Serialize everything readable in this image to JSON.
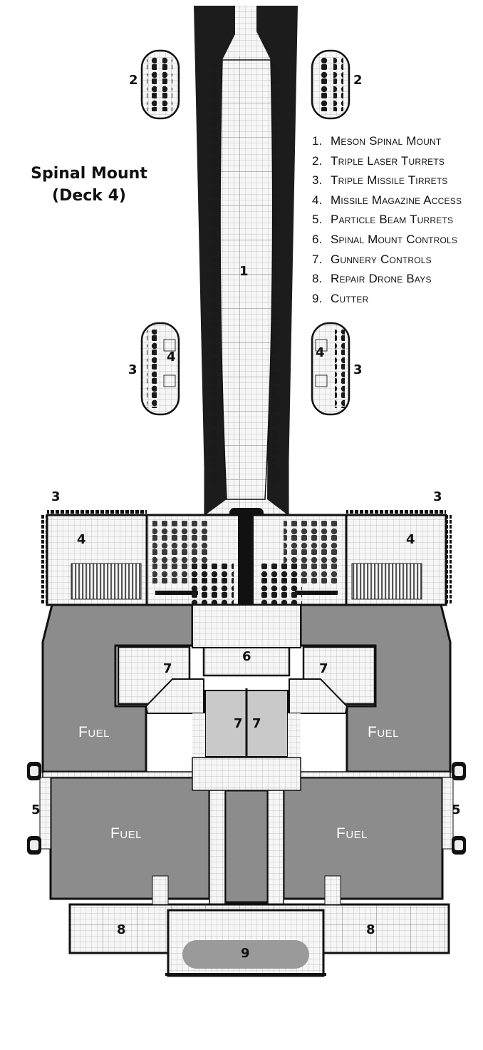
{
  "title": {
    "line1": "Spinal Mount",
    "line2": "(Deck 4)"
  },
  "legend": [
    {
      "num": "1.",
      "text": "Meson Spinal Mount"
    },
    {
      "num": "2.",
      "text": "Triple Laser Turrets"
    },
    {
      "num": "3.",
      "text": "Triple Missile Tirrets"
    },
    {
      "num": "4.",
      "text": "Missile Magazine Access"
    },
    {
      "num": "5.",
      "text": "Particle Beam Turrets"
    },
    {
      "num": "6.",
      "text": "Spinal Mount Controls"
    },
    {
      "num": "7.",
      "text": "Gunnery Controls"
    },
    {
      "num": "8.",
      "text": "Repair Drone Bays"
    },
    {
      "num": "9.",
      "text": "Cutter"
    }
  ],
  "map_labels": {
    "one": "1",
    "two": "2",
    "three": "3",
    "four": "4",
    "five": "5",
    "six": "6",
    "seven": "7",
    "eight": "8",
    "nine": "9",
    "fuel": "Fuel"
  },
  "colors": {
    "wall": "#111111",
    "fuel_tank": "#8c8c8c",
    "deck_grid": "#b5b5b5",
    "floor": "#f4f4f4",
    "equipment": "#1a1a1a"
  }
}
